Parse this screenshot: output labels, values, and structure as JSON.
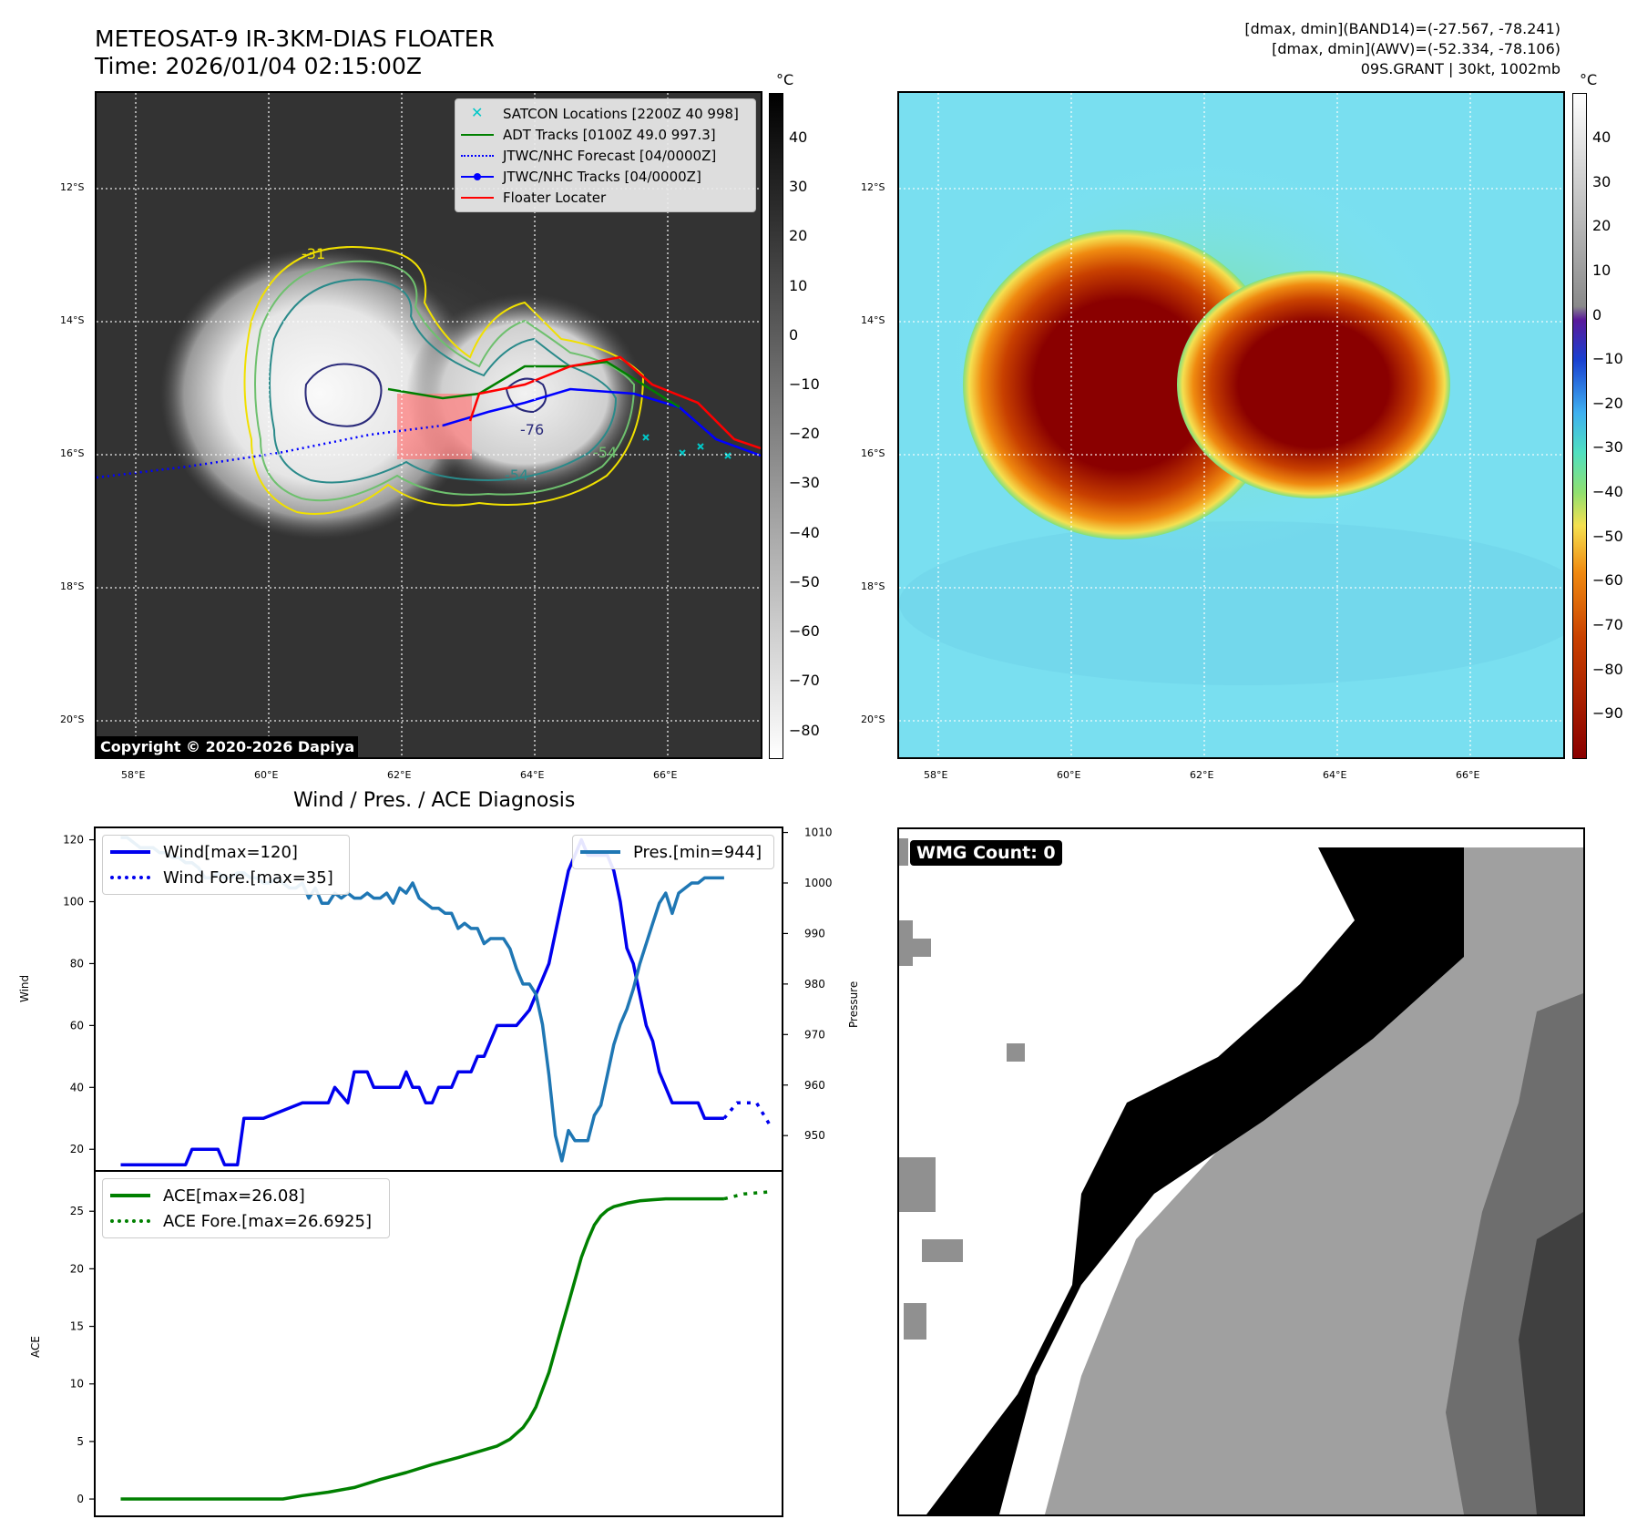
{
  "header": {
    "title": "METEOSAT-9 IR-3KM-DIAS FLOATER",
    "time": "Time: 2026/01/04 02:15:00Z",
    "band14": "[dmax, dmin](BAND14)=(-27.567, -78.241)",
    "awv": "[dmax, dmin](AWV)=(-52.334, -78.106)",
    "storm": "09S.GRANT | 30kt, 1002mb"
  },
  "map": {
    "lat_labels": [
      "12°S",
      "14°S",
      "16°S",
      "18°S",
      "20°S"
    ],
    "lon_labels": [
      "58°E",
      "60°E",
      "62°E",
      "64°E",
      "66°E"
    ],
    "copyright": "Copyright © 2020-2026 Dapiya",
    "contour_labels": [
      "-31",
      "-54",
      "-54",
      "-76"
    ],
    "legend": [
      {
        "label": "SATCON Locations [2200Z 40 998]",
        "color": "#00c8c8",
        "style": "x"
      },
      {
        "label": "ADT Tracks [0100Z 49.0 997.3]",
        "color": "#008000",
        "style": "solid"
      },
      {
        "label": "JTWC/NHC Forecast [04/0000Z]",
        "color": "#0000ff",
        "style": "dotted"
      },
      {
        "label": "JTWC/NHC Tracks [04/0000Z]",
        "color": "#0000ff",
        "style": "dot-line"
      },
      {
        "label": "Floater Locater",
        "color": "#ff0000",
        "style": "solid"
      }
    ]
  },
  "colorbar_gray": {
    "unit": "°C",
    "ticks": [
      "40",
      "30",
      "20",
      "10",
      "0",
      "−10",
      "−20",
      "−30",
      "−40",
      "−50",
      "−60",
      "−70",
      "−80"
    ]
  },
  "colorbar_color": {
    "unit": "°C",
    "ticks": [
      "40",
      "30",
      "20",
      "10",
      "0",
      "−10",
      "−20",
      "−30",
      "−40",
      "−50",
      "−60",
      "−70",
      "−80",
      "−90"
    ]
  },
  "diagnosis": {
    "title": "Wind / Pres. / ACE Diagnosis",
    "wind_axis_label": "Wind",
    "pressure_axis_label": "Pressure",
    "ace_axis_label": "ACE",
    "wind_ticks": [
      "120",
      "100",
      "80",
      "60",
      "40",
      "20"
    ],
    "pressure_ticks": [
      "1010",
      "1000",
      "990",
      "980",
      "970",
      "960",
      "950"
    ],
    "ace_ticks": [
      "25",
      "20",
      "15",
      "10",
      "5",
      "0"
    ]
  },
  "wmg": {
    "label": "WMG Count: 0"
  },
  "chart_data": [
    {
      "type": "line",
      "ylabel": "Wind",
      "ylim": [
        13,
        124
      ],
      "series": [
        {
          "name": "Wind[max=120]",
          "color": "#0000ee",
          "style": "solid",
          "x": [
            0,
            5,
            10,
            11,
            15,
            16,
            18,
            19,
            22,
            28,
            29,
            32,
            33,
            35,
            36,
            38,
            39,
            40,
            41,
            42,
            43,
            44,
            45,
            46,
            47,
            48,
            49,
            50,
            51,
            52,
            53,
            54,
            55,
            56,
            57,
            58,
            59,
            60,
            61,
            63,
            64,
            65,
            66,
            67,
            68,
            69,
            70,
            71,
            72,
            73,
            74,
            75,
            76,
            77,
            78,
            79,
            80,
            81,
            82,
            83,
            84,
            85,
            86,
            87,
            89,
            90,
            93
          ],
          "values": [
            15,
            15,
            15,
            20,
            20,
            15,
            15,
            30,
            30,
            35,
            35,
            35,
            40,
            35,
            45,
            45,
            40,
            40,
            40,
            40,
            40,
            45,
            40,
            40,
            35,
            35,
            40,
            40,
            40,
            45,
            45,
            45,
            50,
            50,
            55,
            60,
            60,
            60,
            60,
            65,
            70,
            75,
            80,
            90,
            100,
            110,
            115,
            120,
            115,
            115,
            115,
            115,
            110,
            100,
            85,
            80,
            70,
            60,
            55,
            45,
            40,
            35,
            35,
            35,
            35,
            30,
            30
          ]
        },
        {
          "name": "Wind Fore.[max=35]",
          "color": "#0000ee",
          "style": "dotted",
          "x": [
            93,
            95,
            96,
            98,
            100
          ],
          "values": [
            30,
            35,
            35,
            35,
            28
          ]
        }
      ]
    },
    {
      "type": "line",
      "ylabel": "Pressure",
      "ylim": [
        943,
        1011
      ],
      "series": [
        {
          "name": "Pres.[min=944]",
          "color": "#1f77b4",
          "style": "solid",
          "x": [
            0,
            1,
            2,
            3,
            4,
            5,
            6,
            7,
            8,
            9,
            10,
            11,
            12,
            13,
            14,
            15,
            16,
            17,
            18,
            19,
            20,
            21,
            22,
            23,
            24,
            25,
            26,
            27,
            28,
            29,
            30,
            31,
            32,
            33,
            34,
            35,
            36,
            37,
            38,
            39,
            40,
            41,
            42,
            43,
            44,
            45,
            46,
            47,
            48,
            49,
            50,
            51,
            52,
            53,
            54,
            55,
            56,
            57,
            58,
            59,
            60,
            61,
            62,
            63,
            64,
            65,
            66,
            67,
            68,
            69,
            70,
            71,
            72,
            73,
            74,
            75,
            76,
            77,
            78,
            79,
            80,
            81,
            82,
            83,
            84,
            85,
            86,
            87,
            88,
            89,
            90,
            91,
            92,
            93
          ],
          "values": [
            1009,
            1009,
            1008,
            1007,
            1007,
            1007,
            1006,
            1006,
            1005,
            1005,
            1004,
            1004,
            1003,
            1001,
            1001,
            1002,
            1001,
            1001,
            1002,
            1002,
            1001,
            1001,
            1000,
            1000,
            1001,
            1000,
            999,
            999,
            1000,
            997,
            999,
            996,
            996,
            998,
            997,
            998,
            997,
            997,
            998,
            997,
            997,
            998,
            996,
            999,
            998,
            1000,
            997,
            996,
            995,
            995,
            994,
            994,
            991,
            992,
            991,
            991,
            988,
            989,
            989,
            989,
            987,
            983,
            980,
            980,
            978,
            972,
            962,
            950,
            945,
            951,
            949,
            949,
            949,
            954,
            956,
            962,
            968,
            972,
            975,
            979,
            984,
            988,
            992,
            996,
            998,
            994,
            998,
            999,
            1000,
            1000,
            1001,
            1001,
            1001,
            1001
          ]
        }
      ]
    },
    {
      "type": "line",
      "ylabel": "ACE",
      "ylim": [
        -1.5,
        28.5
      ],
      "series": [
        {
          "name": "ACE[max=26.08]",
          "color": "#008000",
          "style": "solid",
          "x": [
            0,
            10,
            19,
            22,
            25,
            28,
            32,
            36,
            40,
            44,
            48,
            52,
            55,
            58,
            60,
            62,
            63,
            64,
            65,
            66,
            67,
            68,
            69,
            70,
            71,
            72,
            73,
            74,
            75,
            76,
            78,
            80,
            82,
            84,
            86,
            88,
            90,
            93
          ],
          "values": [
            0,
            0,
            0,
            0,
            0,
            0.3,
            0.6,
            1.0,
            1.7,
            2.3,
            3.0,
            3.6,
            4.1,
            4.6,
            5.2,
            6.2,
            7.0,
            8.0,
            9.5,
            11.0,
            13.0,
            15.0,
            17.0,
            19.0,
            21.0,
            22.5,
            23.8,
            24.6,
            25.1,
            25.4,
            25.7,
            25.9,
            26.0,
            26.08,
            26.08,
            26.08,
            26.08,
            26.08
          ]
        },
        {
          "name": "ACE Fore.[max=26.6925]",
          "color": "#008000",
          "style": "dotted",
          "x": [
            93,
            96,
            100
          ],
          "values": [
            26.08,
            26.5,
            26.69
          ]
        }
      ]
    }
  ]
}
